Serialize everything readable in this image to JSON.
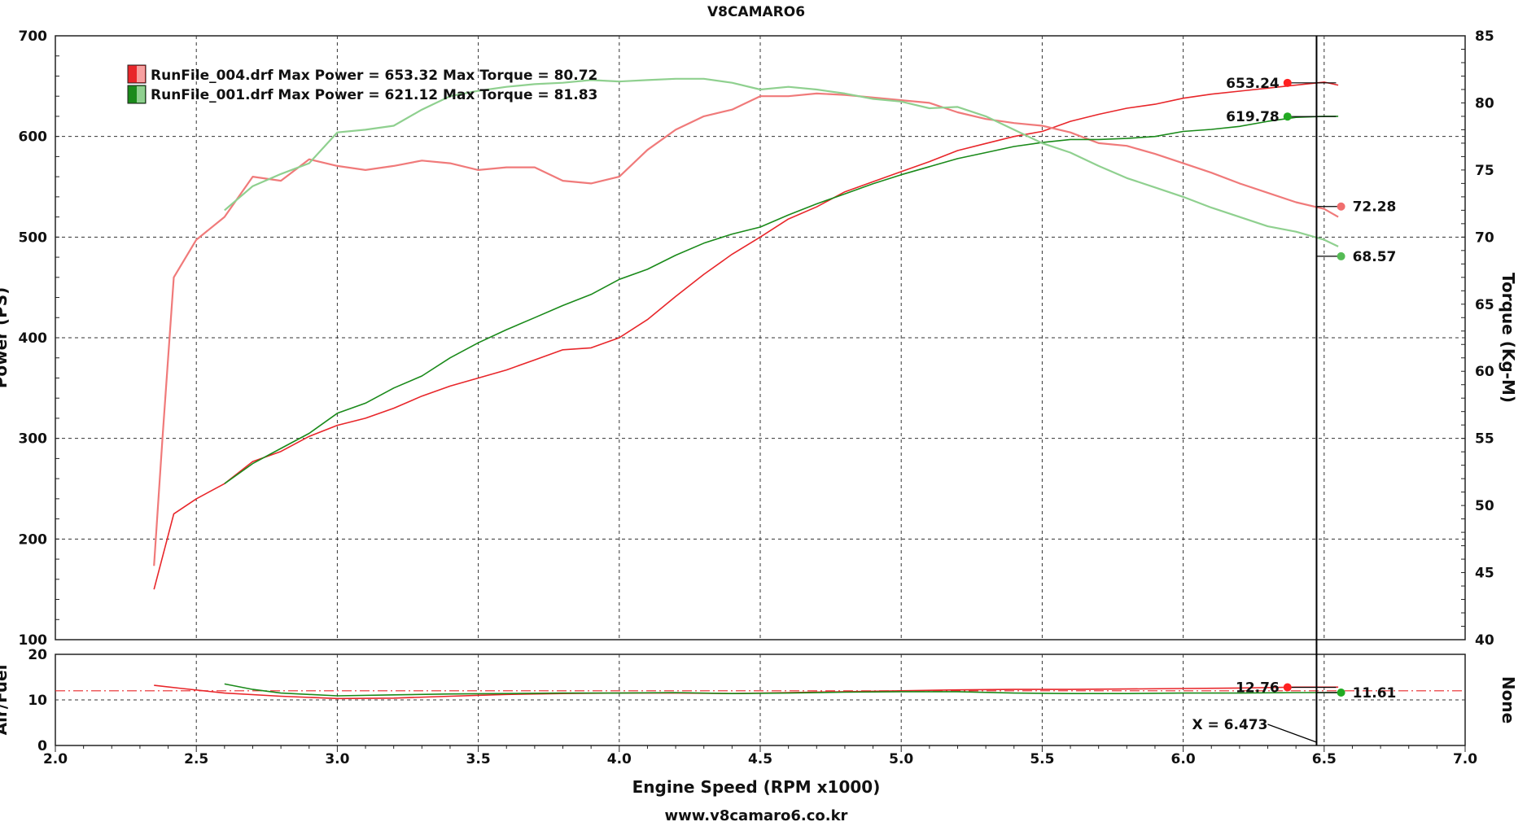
{
  "chart_data": {
    "type": "line",
    "title": "V8CAMARO6",
    "footer": "www.v8camaro6.co.kr",
    "xlabel": "Engine Speed (RPM x1000)",
    "xlim": [
      2.0,
      7.0
    ],
    "x_ticks": [
      2.0,
      2.5,
      3.0,
      3.5,
      4.0,
      4.5,
      5.0,
      5.5,
      6.0,
      6.5,
      7.0
    ],
    "x_tick_labels": [
      "2.0",
      "2.5",
      "3.0",
      "3.5",
      "4.0",
      "4.5",
      "5.0",
      "5.5",
      "6.0",
      "6.5",
      "7.0"
    ],
    "cursor": {
      "x": 6.473,
      "label": "X = 6.473"
    },
    "grid": true,
    "colors": {
      "run004_torque": "#f07a7a",
      "run004_power": "#e8262a",
      "run001_torque": "#8fd08f",
      "run001_power": "#1a8a1a",
      "afr_ref": "#e8262a",
      "marker_red": "#ff2020",
      "marker_green": "#22aa22",
      "marker_pink": "#f06e6e",
      "marker_lightgreen": "#55bb55"
    },
    "legend": {
      "position": "top-left",
      "entries": [
        {
          "name": "RunFile_004.drf Max Power = 653.32 Max Torque = 80.72",
          "color": "#e8262a"
        },
        {
          "name": "RunFile_001.drf Max Power = 621.12 Max Torque = 81.83",
          "color": "#1a8a1a"
        }
      ]
    },
    "panels": [
      {
        "id": "main",
        "ylabel_left": "Power (PS)",
        "ylabel_right": "Torque (Kg-M)",
        "ylim_left": [
          100,
          700
        ],
        "ylim_right": [
          40,
          85
        ],
        "y_ticks_left": [
          100,
          200,
          300,
          400,
          500,
          600,
          700
        ],
        "y_ticks_right": [
          40,
          45,
          50,
          55,
          60,
          65,
          70,
          75,
          80,
          85
        ],
        "series": [
          {
            "name": "RunFile_004.drf Power",
            "axis": "left",
            "color": "#e8262a",
            "x": [
              2.35,
              2.42,
              2.5,
              2.6,
              2.7,
              2.8,
              2.9,
              3.0,
              3.1,
              3.2,
              3.3,
              3.4,
              3.5,
              3.6,
              3.7,
              3.8,
              3.9,
              4.0,
              4.1,
              4.2,
              4.3,
              4.4,
              4.5,
              4.6,
              4.7,
              4.8,
              4.9,
              5.0,
              5.1,
              5.2,
              5.3,
              5.4,
              5.5,
              5.6,
              5.7,
              5.8,
              5.9,
              6.0,
              6.1,
              6.2,
              6.3,
              6.4,
              6.5,
              6.55
            ],
            "y": [
              150,
              225,
              240,
              255,
              277,
              287,
              302,
              313,
              320,
              330,
              342,
              352,
              360,
              368,
              378,
              388,
              390,
              400,
              418,
              441,
              463,
              483,
              500,
              518,
              530,
              545,
              555,
              565,
              575,
              586,
              593,
              600,
              605,
              615,
              622,
              628,
              632,
              638,
              642,
              645,
              648,
              651,
              654,
              651
            ]
          },
          {
            "name": "RunFile_004.drf Torque",
            "axis": "right",
            "color": "#f07a7a",
            "x": [
              2.35,
              2.38,
              2.42,
              2.5,
              2.6,
              2.7,
              2.8,
              2.9,
              3.0,
              3.1,
              3.2,
              3.3,
              3.4,
              3.5,
              3.6,
              3.7,
              3.8,
              3.9,
              4.0,
              4.1,
              4.2,
              4.3,
              4.4,
              4.5,
              4.6,
              4.7,
              4.8,
              4.9,
              5.0,
              5.1,
              5.2,
              5.3,
              5.4,
              5.5,
              5.6,
              5.7,
              5.8,
              5.9,
              6.0,
              6.1,
              6.2,
              6.3,
              6.4,
              6.5,
              6.55
            ],
            "y": [
              45.5,
              55,
              67,
              69.8,
              71.5,
              74.5,
              74.2,
              75.8,
              75.3,
              75.0,
              75.3,
              75.7,
              75.5,
              75.0,
              75.2,
              75.2,
              74.2,
              74.0,
              74.5,
              76.5,
              78.0,
              79.0,
              79.5,
              80.5,
              80.5,
              80.7,
              80.6,
              80.4,
              80.2,
              80.0,
              79.3,
              78.8,
              78.5,
              78.3,
              77.8,
              77.0,
              76.8,
              76.2,
              75.5,
              74.8,
              74.0,
              73.3,
              72.6,
              72.1,
              71.5
            ]
          },
          {
            "name": "RunFile_001.drf Power",
            "axis": "left",
            "color": "#1a8a1a",
            "x": [
              2.6,
              2.7,
              2.8,
              2.9,
              3.0,
              3.1,
              3.2,
              3.3,
              3.4,
              3.5,
              3.6,
              3.7,
              3.8,
              3.9,
              4.0,
              4.1,
              4.2,
              4.3,
              4.4,
              4.5,
              4.6,
              4.7,
              4.8,
              4.9,
              5.0,
              5.1,
              5.2,
              5.3,
              5.4,
              5.5,
              5.6,
              5.7,
              5.8,
              5.9,
              6.0,
              6.1,
              6.2,
              6.3,
              6.4,
              6.5,
              6.55
            ],
            "y": [
              255,
              275,
              290,
              305,
              325,
              335,
              350,
              362,
              380,
              395,
              408,
              420,
              432,
              443,
              458,
              468,
              482,
              494,
              503,
              510,
              522,
              533,
              543,
              553,
              562,
              570,
              578,
              584,
              590,
              594,
              597,
              597,
              598,
              600,
              605,
              607,
              610,
              615,
              619,
              620,
              620
            ]
          },
          {
            "name": "RunFile_001.drf Torque",
            "axis": "right",
            "color": "#8fd08f",
            "x": [
              2.6,
              2.7,
              2.8,
              2.9,
              3.0,
              3.1,
              3.2,
              3.3,
              3.4,
              3.5,
              3.6,
              3.7,
              3.8,
              3.9,
              4.0,
              4.1,
              4.2,
              4.3,
              4.4,
              4.5,
              4.6,
              4.7,
              4.8,
              4.9,
              5.0,
              5.1,
              5.2,
              5.3,
              5.4,
              5.5,
              5.6,
              5.7,
              5.8,
              5.9,
              6.0,
              6.1,
              6.2,
              6.3,
              6.4,
              6.5,
              6.55
            ],
            "y": [
              72,
              73.8,
              74.7,
              75.5,
              77.8,
              78,
              78.3,
              79.5,
              80.5,
              80.9,
              81.2,
              81.4,
              81.5,
              81.7,
              81.6,
              81.7,
              81.8,
              81.8,
              81.5,
              81.0,
              81.2,
              81.0,
              80.7,
              80.3,
              80.1,
              79.6,
              79.7,
              79.0,
              78.0,
              77.0,
              76.3,
              75.3,
              74.4,
              73.7,
              73.0,
              72.2,
              71.5,
              70.8,
              70.4,
              69.8,
              69.3
            ]
          }
        ],
        "markers": [
          {
            "x": 6.37,
            "y": 653.24,
            "axis": "left",
            "label": "653.24",
            "color": "#ff2020",
            "label_side": "left"
          },
          {
            "x": 6.37,
            "y": 619.78,
            "axis": "left",
            "label": "619.78",
            "color": "#22aa22",
            "label_side": "left"
          },
          {
            "x": 6.56,
            "y": 72.28,
            "axis": "right",
            "label": "72.28",
            "color": "#f06e6e",
            "label_side": "right"
          },
          {
            "x": 6.56,
            "y": 68.57,
            "axis": "right",
            "label": "68.57",
            "color": "#55bb55",
            "label_side": "right"
          }
        ]
      },
      {
        "id": "afr",
        "ylabel_left": "Air/Fuel",
        "ylabel_right": "None",
        "ylim_left": [
          0,
          20
        ],
        "y_ticks_left": [
          0,
          10,
          20
        ],
        "reference_line": 12.0,
        "series": [
          {
            "name": "RunFile_004.drf Air/Fuel",
            "axis": "left",
            "color": "#e8262a",
            "x": [
              2.35,
              2.45,
              2.6,
              2.8,
              3.0,
              3.2,
              3.4,
              3.6,
              3.8,
              4.0,
              4.2,
              4.4,
              4.6,
              4.8,
              5.0,
              5.2,
              5.4,
              5.6,
              5.8,
              6.0,
              6.2,
              6.4,
              6.55
            ],
            "y": [
              13.2,
              12.5,
              11.5,
              10.8,
              10.3,
              10.4,
              10.8,
              11.2,
              11.4,
              11.5,
              11.5,
              11.4,
              11.6,
              11.8,
              12.0,
              12.2,
              12.3,
              12.3,
              12.4,
              12.5,
              12.6,
              12.8,
              12.8
            ]
          },
          {
            "name": "RunFile_001.drf Air/Fuel",
            "axis": "left",
            "color": "#1a8a1a",
            "x": [
              2.6,
              2.7,
              2.8,
              3.0,
              3.2,
              3.4,
              3.6,
              3.8,
              4.0,
              4.2,
              4.4,
              4.6,
              4.8,
              5.0,
              5.2,
              5.4,
              5.6,
              5.8,
              6.0,
              6.2,
              6.4,
              6.55
            ],
            "y": [
              13.5,
              12.3,
              11.5,
              10.9,
              11.1,
              11.3,
              11.4,
              11.5,
              11.5,
              11.6,
              11.4,
              11.5,
              11.7,
              11.8,
              11.8,
              11.5,
              11.4,
              11.4,
              11.5,
              11.5,
              11.6,
              11.6
            ]
          }
        ],
        "markers": [
          {
            "x": 6.37,
            "y": 12.76,
            "axis": "left",
            "label": "12.76",
            "color": "#ff2020",
            "label_side": "left"
          },
          {
            "x": 6.56,
            "y": 11.61,
            "axis": "left",
            "label": "11.61",
            "color": "#22aa22",
            "label_side": "right"
          }
        ]
      }
    ]
  }
}
